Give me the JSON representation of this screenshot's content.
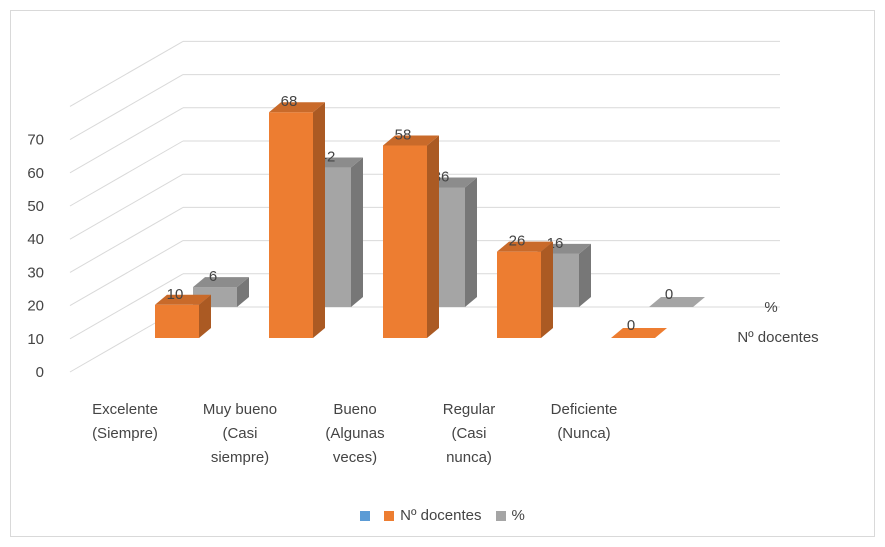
{
  "chart_data": {
    "type": "bar",
    "subtype": "3d-clustered-column",
    "title": "",
    "xlabel": "",
    "ylabel": "",
    "ylim": [
      0,
      70
    ],
    "yticks": [
      "0",
      "10",
      "20",
      "30",
      "40",
      "50",
      "60",
      "70"
    ],
    "grid": true,
    "legend_position": "bottom",
    "categories": [
      [
        "Excelente",
        "(Siempre)"
      ],
      [
        "Muy bueno",
        "(Casi",
        "siempre)"
      ],
      [
        "Bueno",
        "(Algunas",
        "veces)"
      ],
      [
        "Regular",
        "(Casi",
        "nunca)"
      ],
      [
        "Deficiente",
        "(Nunca)"
      ]
    ],
    "series": [
      {
        "name": "Nº docentes",
        "color": "#ED7D31",
        "values": [
          10,
          68,
          58,
          26,
          0
        ]
      },
      {
        "name": "%",
        "color": "#A5A5A5",
        "values": [
          6,
          42,
          36,
          16,
          0
        ]
      }
    ],
    "depth_axis_labels": [
      "%",
      "Nº docentes"
    ],
    "legend": [
      {
        "name": "",
        "color": "#5B9BD5"
      },
      {
        "name": "Nº docentes",
        "color": "#ED7D31"
      },
      {
        "name": "%",
        "color": "#A5A5A5"
      }
    ]
  }
}
